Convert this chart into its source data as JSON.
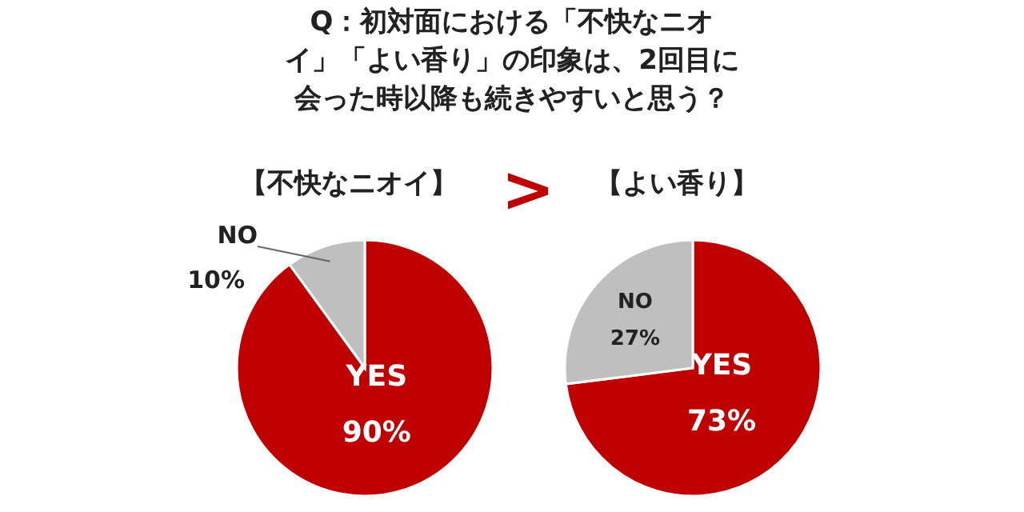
{
  "chart_data": [
    {
      "type": "pie",
      "title": "Q：初対面における「不快なニオイ」「よい香り」の印象は、2回目に会った時以降も続きやすいと思う？",
      "subtitle": "【不快なニオイ】",
      "categories": [
        "YES",
        "NO"
      ],
      "values": [
        90,
        10
      ],
      "colors": [
        "#c00000",
        "#bfbfbf"
      ],
      "value_labels": [
        "90%",
        "10%"
      ],
      "annotations": [
        ">"
      ]
    },
    {
      "type": "pie",
      "subtitle": "【よい香り】",
      "categories": [
        "YES",
        "NO"
      ],
      "values": [
        73,
        27
      ],
      "colors": [
        "#c00000",
        "#bfbfbf"
      ],
      "value_labels": [
        "73%",
        "27%"
      ]
    }
  ]
}
